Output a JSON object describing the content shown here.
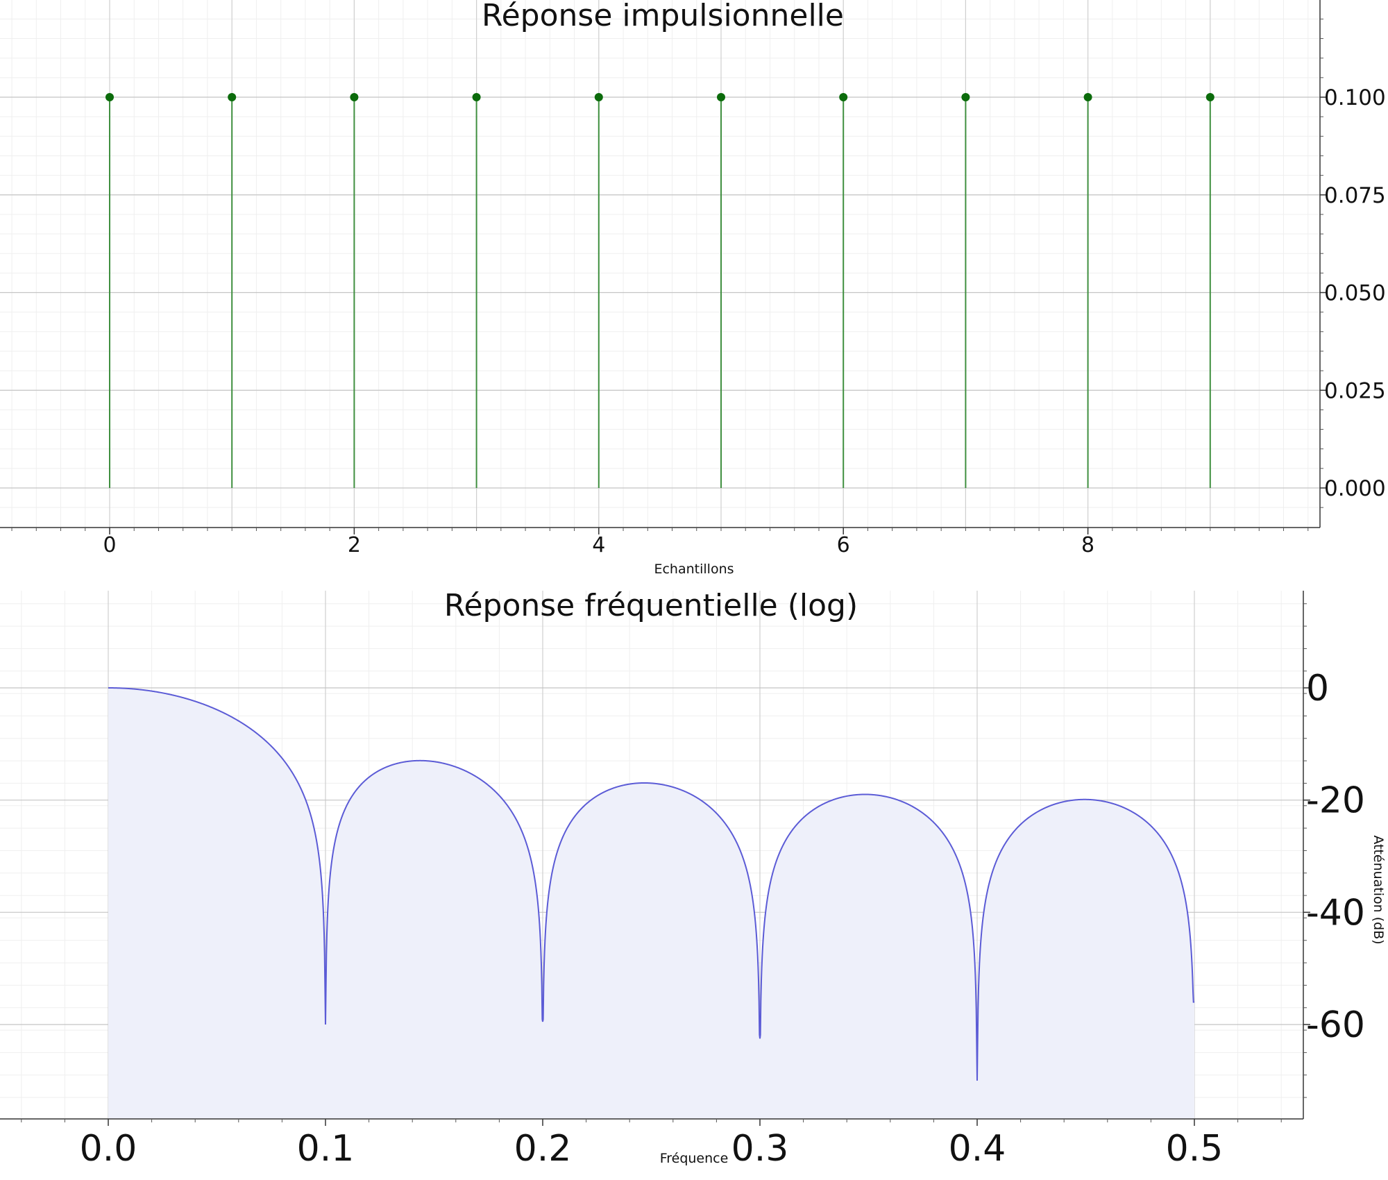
{
  "chart_data": [
    {
      "type": "stem",
      "title": "Réponse impulsionnelle",
      "xlabel": "Echantillons",
      "ylabel": "",
      "xlim": [
        -0.9,
        9.9
      ],
      "ylim": [
        -0.01,
        0.13
      ],
      "x_ticks": [
        0,
        2,
        4,
        6,
        8
      ],
      "y_ticks": [
        0.0,
        0.025,
        0.05,
        0.075,
        0.1
      ],
      "y_tick_labels": [
        "0.000",
        "0.025",
        "0.050",
        "0.075",
        "0.100"
      ],
      "x": [
        0,
        1,
        2,
        3,
        4,
        5,
        6,
        7,
        8,
        9
      ],
      "values": [
        0.1,
        0.1,
        0.1,
        0.1,
        0.1,
        0.1,
        0.1,
        0.1,
        0.1,
        0.1
      ],
      "grid": true,
      "y_axis_position": "right",
      "color": "#2e7d32"
    },
    {
      "type": "area",
      "title": "Réponse fréquentielle (log)",
      "xlabel": "Fréquence",
      "ylabel": "Atténuation (dB)",
      "xlim": [
        -0.05,
        0.55
      ],
      "ylim": [
        -77,
        17
      ],
      "x_ticks": [
        0.0,
        0.1,
        0.2,
        0.3,
        0.4,
        0.5
      ],
      "x_tick_labels": [
        "0.0",
        "0.1",
        "0.2",
        "0.3",
        "0.4",
        "0.5"
      ],
      "y_ticks": [
        0,
        -20,
        -40,
        -60
      ],
      "y_tick_labels": [
        "0",
        "-20",
        "-40",
        "-60"
      ],
      "series": [
        {
          "filter_length": 10,
          "freq_range": [
            0,
            0.5
          ],
          "notch_floor_db": [
            -60,
            -59.5,
            -62.5,
            -70,
            -56
          ]
        }
      ],
      "grid": true,
      "y_axis_position": "right",
      "color": "#5b5bd6",
      "fill_color": "#eef0fa"
    }
  ]
}
